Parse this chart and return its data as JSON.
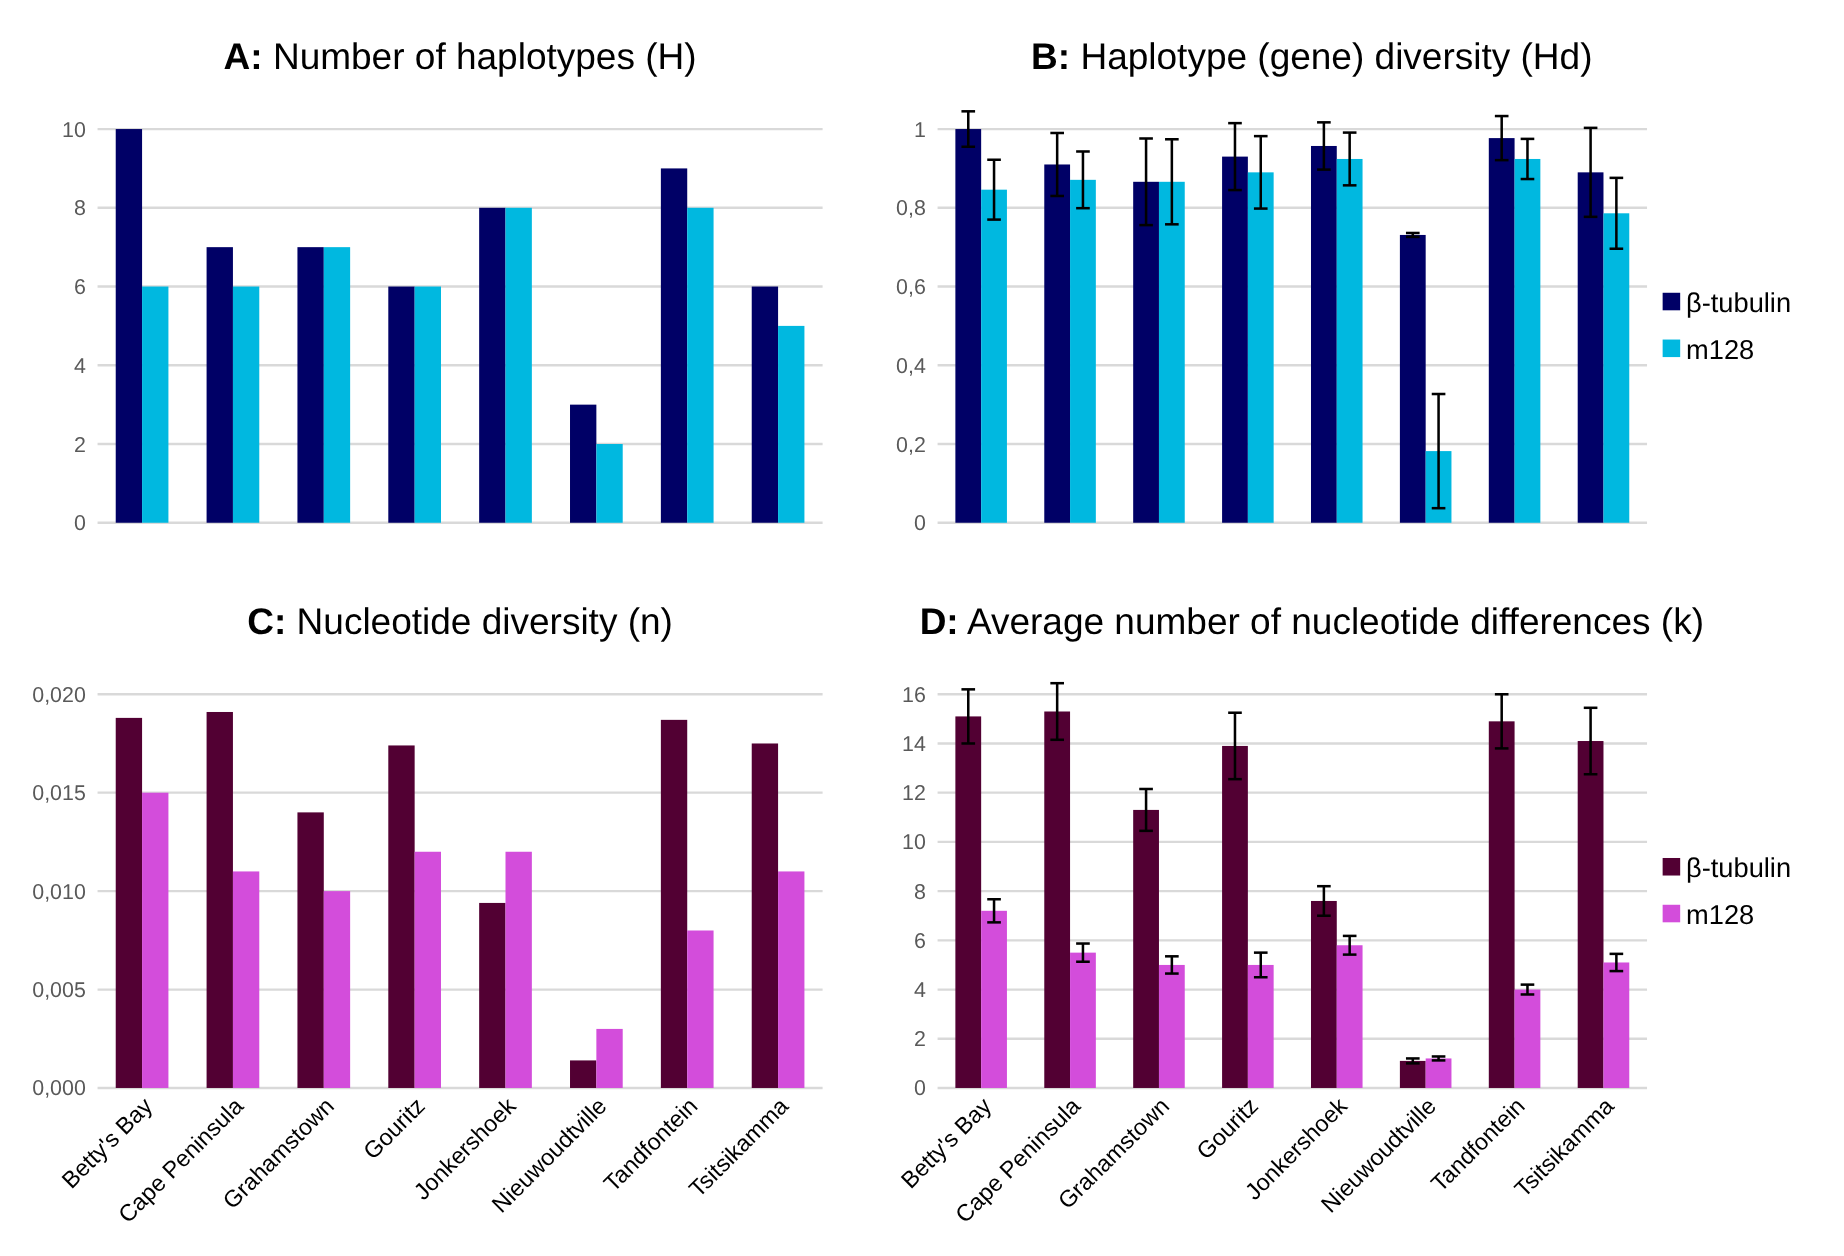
{
  "chart_data": [
    {
      "type": "bar",
      "title": "A: Number of haplotypes (H)",
      "categories": [
        null,
        null,
        null,
        null,
        null,
        null,
        null,
        null
      ],
      "grid": "y",
      "ylim": [
        0,
        10
      ],
      "yticks": [
        0,
        2,
        4,
        6,
        8,
        10
      ],
      "series": [
        {
          "color": "#000066",
          "values": [
            10,
            7,
            7,
            6,
            8,
            3,
            9,
            6
          ]
        },
        {
          "color": "#00b8e0",
          "values": [
            6,
            6,
            7,
            6,
            8,
            2,
            8,
            5
          ]
        }
      ]
    },
    {
      "type": "bar",
      "title": "B: Haplotype (gene) diversity (Hd)",
      "categories": [
        null,
        null,
        null,
        null,
        null,
        null,
        null,
        null
      ],
      "grid": "y",
      "legend": "right",
      "ylim": [
        0,
        1
      ],
      "yticks": [
        0,
        {
          "value": 0.2,
          "label": "0,2"
        },
        {
          "value": 0.4,
          "label": "0,4"
        },
        {
          "value": 0.6,
          "label": "0,6"
        },
        {
          "value": 0.8,
          "label": "0,8"
        },
        1
      ],
      "series": [
        {
          "name": "β-tubulin",
          "color": "#000066",
          "values": [
            1.0,
            0.91,
            0.866,
            0.93,
            0.957,
            0.731,
            0.977,
            0.89
          ],
          "errors": [
            0.045,
            0.08,
            0.11,
            0.085,
            0.06,
            0.005,
            0.056,
            0.113
          ]
        },
        {
          "name": "m128",
          "color": "#00b8e0",
          "values": [
            0.846,
            0.871,
            0.866,
            0.89,
            0.924,
            0.182,
            0.924,
            0.786
          ],
          "errors": [
            0.076,
            0.072,
            0.108,
            0.092,
            0.067,
            0.145,
            0.051,
            0.09
          ]
        }
      ]
    },
    {
      "type": "bar",
      "title": "C: Nucleotide diversity (n)",
      "categories": [
        "Betty's Bay",
        "Cape Peninsula",
        "Grahamstown",
        "Gouritz",
        "Jonkershoek",
        "Nieuwoudtville",
        "Tandfontein",
        "Tsitsikamma"
      ],
      "grid": "y",
      "ylim": [
        0,
        0.02
      ],
      "yticks": [
        {
          "value": 0,
          "label": "0,000"
        },
        {
          "value": 0.005,
          "label": "0,005"
        },
        {
          "value": 0.01,
          "label": "0,010"
        },
        {
          "value": 0.015,
          "label": "0,015"
        },
        {
          "value": 0.02,
          "label": "0,020"
        }
      ],
      "series": [
        {
          "color": "#520033",
          "values": [
            0.0188,
            0.0191,
            0.014,
            0.0174,
            0.0094,
            0.0014,
            0.0187,
            0.0175
          ]
        },
        {
          "color": "#d34ddb",
          "values": [
            0.015,
            0.011,
            0.01,
            0.012,
            0.012,
            0.003,
            0.008,
            0.011
          ]
        }
      ]
    },
    {
      "type": "bar",
      "title": "D: Average number of nucleotide differences (k)",
      "categories": [
        "Betty's Bay",
        "Cape Peninsula",
        "Grahamstown",
        "Gouritz",
        "Jonkershoek",
        "Nieuwoudtville",
        "Tandfontein",
        "Tsitsikamma"
      ],
      "grid": "y",
      "legend": "right",
      "ylim": [
        0,
        16
      ],
      "yticks": [
        0,
        2,
        4,
        6,
        8,
        10,
        12,
        14,
        16
      ],
      "series": [
        {
          "name": "β-tubulin",
          "color": "#520033",
          "values": [
            15.1,
            15.3,
            11.3,
            13.9,
            7.6,
            1.1,
            14.9,
            14.1
          ],
          "errors": [
            1.1,
            1.15,
            0.85,
            1.35,
            0.6,
            0.1,
            1.1,
            1.35
          ]
        },
        {
          "name": "m128",
          "color": "#d34ddb",
          "values": [
            7.2,
            5.5,
            5.0,
            5.0,
            5.8,
            1.2,
            4.0,
            5.1
          ],
          "errors": [
            0.47,
            0.37,
            0.35,
            0.5,
            0.38,
            0.08,
            0.2,
            0.35
          ]
        }
      ]
    }
  ]
}
